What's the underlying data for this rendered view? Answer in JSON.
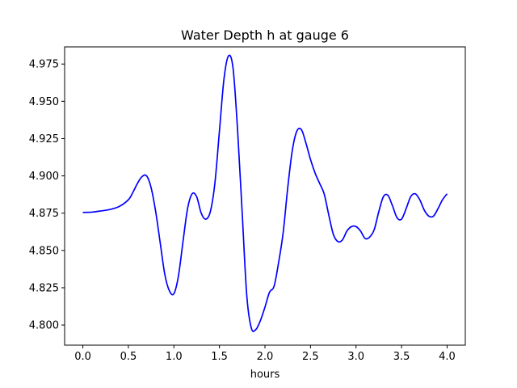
{
  "chart_data": {
    "type": "line",
    "title": "Water Depth h at gauge 6",
    "xlabel": "hours",
    "ylabel": "",
    "xlim": [
      -0.2,
      4.2
    ],
    "ylim": [
      4.7865,
      4.9865
    ],
    "x_ticks": [
      0.0,
      0.5,
      1.0,
      1.5,
      2.0,
      2.5,
      3.0,
      3.5,
      4.0
    ],
    "x_tick_labels": [
      "0.0",
      "0.5",
      "1.0",
      "1.5",
      "2.0",
      "2.5",
      "3.0",
      "3.5",
      "4.0"
    ],
    "y_ticks": [
      4.8,
      4.825,
      4.85,
      4.875,
      4.9,
      4.925,
      4.95,
      4.975
    ],
    "y_tick_labels": [
      "4.800",
      "4.825",
      "4.850",
      "4.875",
      "4.900",
      "4.925",
      "4.950",
      "4.975"
    ],
    "grid": false,
    "series": [
      {
        "color": "#0000ff",
        "x": [
          0.0,
          0.1,
          0.2,
          0.3,
          0.4,
          0.5,
          0.55,
          0.6,
          0.65,
          0.7,
          0.75,
          0.8,
          0.85,
          0.9,
          0.95,
          1.0,
          1.05,
          1.1,
          1.15,
          1.2,
          1.25,
          1.3,
          1.35,
          1.4,
          1.45,
          1.5,
          1.55,
          1.6,
          1.65,
          1.7,
          1.75,
          1.8,
          1.85,
          1.9,
          1.95,
          2.0,
          2.05,
          2.1,
          2.15,
          2.2,
          2.25,
          2.3,
          2.35,
          2.4,
          2.45,
          2.5,
          2.55,
          2.6,
          2.65,
          2.7,
          2.75,
          2.8,
          2.85,
          2.9,
          2.95,
          3.0,
          3.05,
          3.1,
          3.15,
          3.2,
          3.25,
          3.3,
          3.35,
          3.4,
          3.45,
          3.5,
          3.55,
          3.6,
          3.65,
          3.7,
          3.75,
          3.8,
          3.85,
          3.9,
          3.95,
          4.0
        ],
        "y": [
          4.8755,
          4.8757,
          4.8765,
          4.8775,
          4.8795,
          4.884,
          4.889,
          4.895,
          4.8995,
          4.9,
          4.892,
          4.876,
          4.855,
          4.834,
          4.823,
          4.821,
          4.833,
          4.856,
          4.878,
          4.888,
          4.886,
          4.875,
          4.871,
          4.876,
          4.895,
          4.93,
          4.965,
          4.9805,
          4.972,
          4.93,
          4.875,
          4.82,
          4.798,
          4.797,
          4.803,
          4.812,
          4.822,
          4.826,
          4.842,
          4.862,
          4.892,
          4.917,
          4.93,
          4.931,
          4.922,
          4.911,
          4.902,
          4.895,
          4.888,
          4.874,
          4.861,
          4.856,
          4.857,
          4.863,
          4.866,
          4.866,
          4.863,
          4.858,
          4.859,
          4.864,
          4.876,
          4.886,
          4.887,
          4.88,
          4.872,
          4.871,
          4.878,
          4.886,
          4.888,
          4.884,
          4.877,
          4.873,
          4.873,
          4.878,
          4.884,
          4.888
        ]
      }
    ]
  }
}
